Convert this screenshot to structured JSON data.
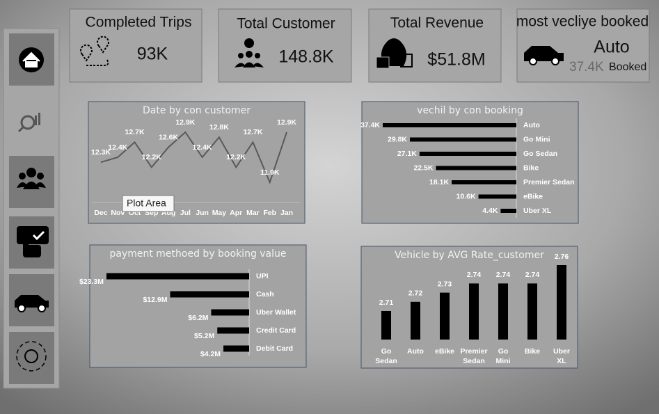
{
  "kpis": [
    {
      "title": "Completed Trips",
      "value": "93K"
    },
    {
      "title": "Total Customer",
      "value": "148.8K"
    },
    {
      "title": "Total Revenue",
      "value": "$51.8M"
    },
    {
      "title": "most vecliye booked",
      "value": "Auto",
      "count": "37.4K",
      "note": "Booked"
    }
  ],
  "tooltip": "Plot Area",
  "chart_data": [
    {
      "type": "line",
      "title": "Date by con customer",
      "color": "#595959",
      "categories": [
        "Dec",
        "Nov",
        "Oct",
        "Sep",
        "Aug",
        "Jul",
        "Jun",
        "May",
        "Apr",
        "Mar",
        "Feb",
        "Jan"
      ],
      "values": [
        12.3,
        12.4,
        12.7,
        12.2,
        12.6,
        12.9,
        12.4,
        12.8,
        12.2,
        12.7,
        11.9,
        12.9
      ],
      "value_labels": [
        "12.3K",
        "12.4K",
        "12.7K",
        "12.2K",
        "12.6K",
        "12.9K",
        "12.4K",
        "12.8K",
        "12.2K",
        "12.7K",
        "11.9K",
        "12.9K"
      ]
    },
    {
      "type": "bar",
      "orientation": "horizontal",
      "title": "vechil by con booking",
      "color": "#000000",
      "categories": [
        "Auto",
        "Go Mini",
        "Go Sedan",
        "Bike",
        "Premier Sedan",
        "eBike",
        "Uber XL"
      ],
      "values": [
        37.4,
        29.8,
        27.1,
        22.5,
        18.1,
        10.6,
        4.4
      ],
      "value_labels": [
        "37.4K",
        "29.8K",
        "27.1K",
        "22.5K",
        "18.1K",
        "10.6K",
        "4.4K"
      ]
    },
    {
      "type": "bar",
      "orientation": "horizontal",
      "title": "payment methoed by booking value",
      "color": "#000000",
      "categories": [
        "UPI",
        "Cash",
        "Uber Wallet",
        "Credit Card",
        "Debit Card"
      ],
      "values": [
        23.3,
        12.9,
        6.2,
        5.2,
        4.2
      ],
      "value_labels": [
        "$23.3M",
        "$12.9M",
        "$6.2M",
        "$5.2M",
        "$4.2M"
      ]
    },
    {
      "type": "bar",
      "orientation": "vertical",
      "title": "Vehicle by AVG Rate_customer",
      "color": "#000000",
      "categories": [
        "Go Sedan",
        "Auto",
        "eBike",
        "Premier Sedan",
        "Go Mini",
        "Bike",
        "Uber XL"
      ],
      "values": [
        2.71,
        2.72,
        2.73,
        2.74,
        2.74,
        2.74,
        2.76
      ]
    }
  ]
}
